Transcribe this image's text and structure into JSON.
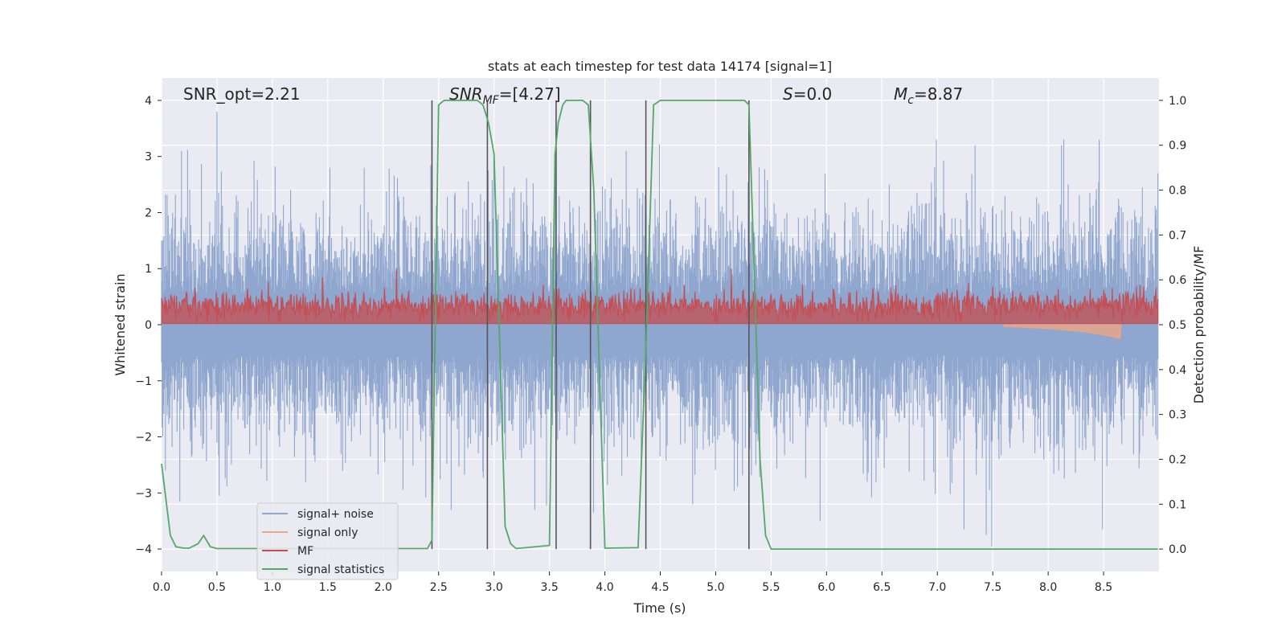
{
  "chart_data": {
    "type": "line",
    "title": "stats at each timestep for test data 14174 [signal=1]",
    "xlabel": "Time (s)",
    "ylabel": "Whitened strain",
    "y2label": "Detection probability/MF",
    "xlim": [
      0.0,
      9.0
    ],
    "ylim": [
      -4.4,
      4.4
    ],
    "y2lim": [
      -0.05,
      1.05
    ],
    "xticks": [
      0.0,
      0.5,
      1.0,
      1.5,
      2.0,
      2.5,
      3.0,
      3.5,
      4.0,
      4.5,
      5.0,
      5.5,
      6.0,
      6.5,
      7.0,
      7.5,
      8.0,
      8.5
    ],
    "xtick_labels": [
      "0.0",
      "0.5",
      "1.0",
      "1.5",
      "2.0",
      "2.5",
      "3.0",
      "3.5",
      "4.0",
      "4.5",
      "5.0",
      "5.5",
      "6.0",
      "6.5",
      "7.0",
      "7.5",
      "8.0",
      "8.5"
    ],
    "yticks": [
      -4,
      -3,
      -2,
      -1,
      0,
      1,
      2,
      3,
      4
    ],
    "ytick_labels": [
      "−4",
      "−3",
      "−2",
      "−1",
      "0",
      "1",
      "2",
      "3",
      "4"
    ],
    "y2ticks": [
      0.0,
      0.1,
      0.2,
      0.3,
      0.4,
      0.5,
      0.6,
      0.7,
      0.8,
      0.9,
      1.0
    ],
    "y2tick_labels": [
      "0.0",
      "0.1",
      "0.2",
      "0.3",
      "0.4",
      "0.5",
      "0.6",
      "0.7",
      "0.8",
      "0.9",
      "1.0"
    ],
    "grid": true,
    "legend_position": "lower-left",
    "colors": {
      "noise": "#8fa6cf",
      "signal": "#e8a588",
      "mf": "#c44e52",
      "stats": "#55a868",
      "vlines": "#555555",
      "plot_bg": "#eaeaf2",
      "grid": "#ffffff"
    },
    "annotations": {
      "snr_opt": "SNR_opt=2.21",
      "snr_mf_main": "SNR",
      "snr_mf_sub": "MF",
      "snr_mf_value": "=[4.27]",
      "s_main": "S",
      "s_value": "=0.0",
      "mc_main": "M",
      "mc_sub": "c",
      "mc_value": "=8.87"
    },
    "legend": [
      "signal+ noise",
      "signal only",
      "MF",
      "signal statistics"
    ],
    "vertical_lines_x": [
      2.44,
      2.94,
      3.56,
      3.87,
      4.37,
      5.3
    ],
    "signal_statistics": {
      "x": [
        0.0,
        0.08,
        0.13,
        0.2,
        0.25,
        0.33,
        0.38,
        0.44,
        0.5,
        2.4,
        2.44,
        2.5,
        2.55,
        2.6,
        2.85,
        2.9,
        2.95,
        3.0,
        3.1,
        3.15,
        3.2,
        3.5,
        3.55,
        3.58,
        3.62,
        3.65,
        3.8,
        3.85,
        3.9,
        4.0,
        4.3,
        4.37,
        4.44,
        4.5,
        5.2,
        5.26,
        5.3,
        5.35,
        5.4,
        5.45,
        5.5,
        8.99
      ],
      "y": [
        0.19,
        0.03,
        0.005,
        0.002,
        0.002,
        0.012,
        0.03,
        0.005,
        0.001,
        0.001,
        0.02,
        0.99,
        1.0,
        1.0,
        1.0,
        0.99,
        0.95,
        0.88,
        0.05,
        0.012,
        0.001,
        0.008,
        0.88,
        0.95,
        0.99,
        1.0,
        1.0,
        0.99,
        0.8,
        0.002,
        0.003,
        0.45,
        0.99,
        1.0,
        1.0,
        1.0,
        0.99,
        0.6,
        0.2,
        0.03,
        0.0,
        0.0
      ]
    },
    "signal_only_envelope": {
      "x": [
        7.6,
        8.0,
        8.3,
        8.5,
        8.65,
        8.66
      ],
      "y": [
        -0.03,
        -0.07,
        -0.12,
        -0.18,
        -0.25,
        0.0
      ]
    },
    "noise_spikes": {
      "upper": [
        [
          0.5,
          3.8
        ],
        [
          0.18,
          3.1
        ],
        [
          2.95,
          2.75
        ],
        [
          3.0,
          3.0
        ],
        [
          7.35,
          3.2
        ],
        [
          8.13,
          3.2
        ],
        [
          9.0,
          2.7
        ],
        [
          1.52,
          2.8
        ]
      ],
      "lower": [
        [
          0.52,
          -3.05
        ],
        [
          7.5,
          -3.95
        ],
        [
          7.45,
          -3.75
        ],
        [
          8.5,
          -3.65
        ],
        [
          5.95,
          -3.5
        ],
        [
          7.25,
          -3.65
        ],
        [
          3.9,
          -3.35
        ],
        [
          4.8,
          -3.2
        ]
      ]
    },
    "noise_sigma": 0.85,
    "mf_level": 0.35
  }
}
